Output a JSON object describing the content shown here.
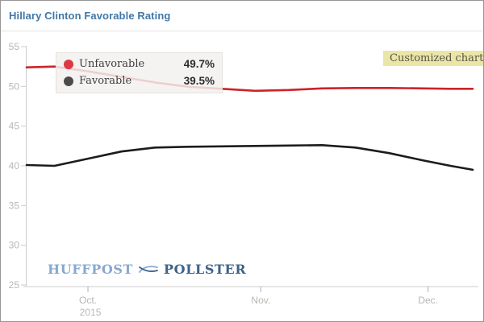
{
  "title": "Hillary Clinton Favorable Rating",
  "badge": "Customized chart",
  "legend": {
    "items": [
      {
        "label": "Unfavorable",
        "value": "49.7%",
        "dot_color": "#dc3a42"
      },
      {
        "label": "Favorable",
        "value": "39.5%",
        "dot_color": "#4b4b4b"
      }
    ]
  },
  "branding": {
    "part1": "HUFFPOST",
    "part2": "POLLSTER"
  },
  "colors": {
    "title_blue": "#4077a8",
    "unfavorable_line": "#cc2329",
    "favorable_line": "#1c1c1c",
    "badge_bg": "#ebe6a6",
    "legend_bg": "#f3f1ee",
    "axis_text": "#b7b7b7",
    "axis_line": "#cccccc",
    "x_tick": "#a9c2de",
    "brand_light_blue": "#87a8d0",
    "brand_dark_blue": "#3c6387"
  },
  "chart_data": {
    "type": "line",
    "title": "Hillary Clinton Favorable Rating",
    "grid": false,
    "legend_position": "top-left-inside",
    "y_axis": {
      "range": [
        25,
        55
      ],
      "ticks": [
        55,
        50,
        45,
        40,
        35,
        30,
        25
      ]
    },
    "x_axis": {
      "tick_labels": [
        "Oct.",
        "Nov.",
        "Dec."
      ],
      "sub_label": "2015",
      "tick_days": [
        11,
        42,
        72
      ],
      "domain_days": [
        0,
        80
      ],
      "approx_span": "late Sep 2015 to early Dec 2015"
    },
    "x_days": [
      0,
      5,
      11,
      17,
      23,
      29,
      35,
      41,
      47,
      53,
      59,
      65,
      71,
      76,
      80
    ],
    "x_dates": [
      "Sep 20",
      "Sep 25",
      "Oct 1",
      "Oct 7",
      "Oct 13",
      "Oct 19",
      "Oct 25",
      "Oct 31",
      "Nov 6",
      "Nov 12",
      "Nov 18",
      "Nov 24",
      "Nov 30",
      "Dec 5",
      "Dec 9"
    ],
    "series": [
      {
        "name": "Unfavorable",
        "color": "#cc2329",
        "final_value": 49.7,
        "values": [
          52.4,
          52.5,
          51.9,
          51.2,
          50.5,
          49.95,
          49.7,
          49.45,
          49.55,
          49.75,
          49.8,
          49.8,
          49.75,
          49.7,
          49.7
        ]
      },
      {
        "name": "Favorable",
        "color": "#1c1c1c",
        "final_value": 39.5,
        "values": [
          40.1,
          40.0,
          40.9,
          41.8,
          42.3,
          42.4,
          42.45,
          42.5,
          42.55,
          42.6,
          42.3,
          41.6,
          40.7,
          40.0,
          39.5
        ]
      }
    ]
  }
}
